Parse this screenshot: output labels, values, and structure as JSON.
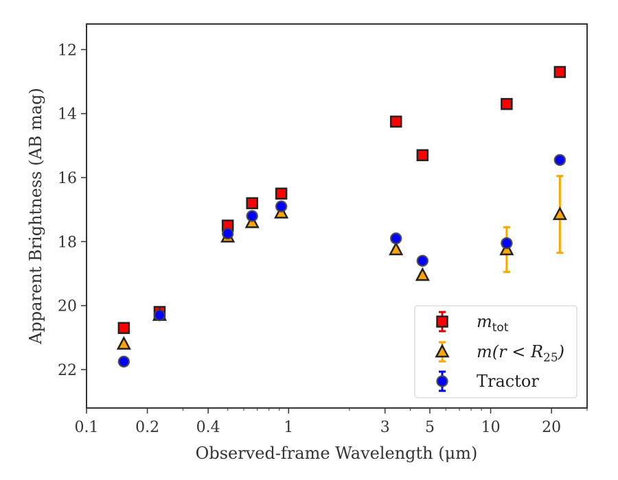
{
  "chart_data": {
    "type": "scatter",
    "title": "",
    "xlabel": "Observed-frame Wavelength (μm)",
    "ylabel": "Apparent Brightness (AB mag)",
    "x_scale": "log",
    "xlim": [
      0.1,
      30
    ],
    "ylim": [
      23.2,
      11.2
    ],
    "y_inverted": true,
    "grid": false,
    "legend_position": "lower-right",
    "x_ticks": [
      {
        "value": 0.1,
        "label": "0.1"
      },
      {
        "value": 0.2,
        "label": "0.2"
      },
      {
        "value": 0.4,
        "label": "0.4"
      },
      {
        "value": 1,
        "label": "1"
      },
      {
        "value": 3,
        "label": "3"
      },
      {
        "value": 5,
        "label": "5"
      },
      {
        "value": 10,
        "label": "10"
      },
      {
        "value": 20,
        "label": "20"
      }
    ],
    "y_ticks": [
      {
        "value": 12,
        "label": "12"
      },
      {
        "value": 14,
        "label": "14"
      },
      {
        "value": 16,
        "label": "16"
      },
      {
        "value": 18,
        "label": "18"
      },
      {
        "value": 20,
        "label": "20"
      },
      {
        "value": 22,
        "label": "22"
      }
    ],
    "series": [
      {
        "name": "m_tot",
        "marker": "square",
        "color": "#ff0000",
        "edge_color": "#222222",
        "error_color": "#e00000",
        "points": [
          {
            "x": 0.153,
            "y": 20.7,
            "err": 0.05
          },
          {
            "x": 0.23,
            "y": 20.2,
            "err": 0.05
          },
          {
            "x": 0.5,
            "y": 17.5,
            "err": 0.05
          },
          {
            "x": 0.66,
            "y": 16.8,
            "err": 0.05
          },
          {
            "x": 0.92,
            "y": 16.5,
            "err": 0.05
          },
          {
            "x": 3.4,
            "y": 14.25,
            "err": 0.05
          },
          {
            "x": 4.6,
            "y": 15.3,
            "err": 0.05
          },
          {
            "x": 12.0,
            "y": 13.7,
            "err": 0.05
          },
          {
            "x": 22.0,
            "y": 12.7,
            "err": 0.05
          }
        ]
      },
      {
        "name": "m(r<R25)",
        "marker": "triangle",
        "color": "#ffa500",
        "edge_color": "#222222",
        "error_color": "#ffa500",
        "points": [
          {
            "x": 0.153,
            "y": 21.2,
            "err": 0.05
          },
          {
            "x": 0.23,
            "y": 20.3,
            "err": 0.05
          },
          {
            "x": 0.5,
            "y": 17.85,
            "err": 0.05
          },
          {
            "x": 0.66,
            "y": 17.4,
            "err": 0.05
          },
          {
            "x": 0.92,
            "y": 17.1,
            "err": 0.05
          },
          {
            "x": 3.4,
            "y": 18.25,
            "err": 0.05
          },
          {
            "x": 4.6,
            "y": 19.05,
            "err": 0.05
          },
          {
            "x": 12.0,
            "y": 18.25,
            "err": 0.7
          },
          {
            "x": 22.0,
            "y": 17.15,
            "err": 1.2
          }
        ]
      },
      {
        "name": "Tractor",
        "marker": "circle",
        "color": "#0000ff",
        "edge_color": "#444444",
        "error_color": "#0000ff",
        "points": [
          {
            "x": 0.153,
            "y": 21.75,
            "err": 0.05
          },
          {
            "x": 0.23,
            "y": 20.3,
            "err": 0.05
          },
          {
            "x": 0.5,
            "y": 17.75,
            "err": 0.05
          },
          {
            "x": 0.66,
            "y": 17.2,
            "err": 0.05
          },
          {
            "x": 0.92,
            "y": 16.9,
            "err": 0.05
          },
          {
            "x": 3.4,
            "y": 17.9,
            "err": 0.05
          },
          {
            "x": 4.6,
            "y": 18.6,
            "err": 0.05
          },
          {
            "x": 12.0,
            "y": 18.05,
            "err": 0.05
          },
          {
            "x": 22.0,
            "y": 15.45,
            "err": 0.05
          }
        ]
      }
    ]
  },
  "legend": {
    "items": [
      {
        "main": "m",
        "sub": "tot",
        "rest": ""
      },
      {
        "main": "m(r < R",
        "sub": "25",
        "rest": ")"
      },
      {
        "main": "Tractor",
        "sub": "",
        "rest": ""
      }
    ]
  }
}
